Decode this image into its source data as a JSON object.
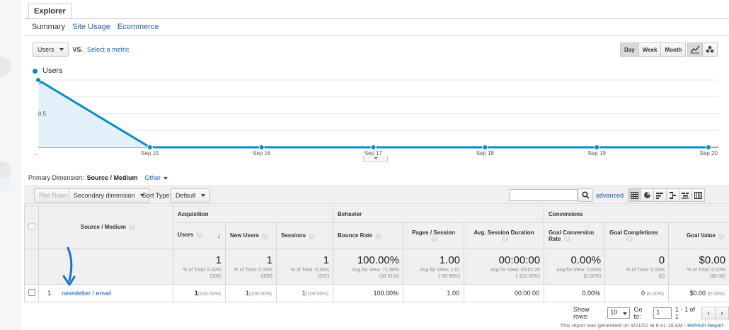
{
  "explorer_tab": "Explorer",
  "subtabs": [
    "Summary",
    "Site Usage",
    "Ecommerce"
  ],
  "metric_select": "Users",
  "vs_label": "VS.",
  "select_metric_link": "Select a metric",
  "period_buttons": [
    "Day",
    "Week",
    "Month"
  ],
  "period_active": "Day",
  "chart_type_icons": [
    "line-chart-icon",
    "motion-chart-icon"
  ],
  "chart_data": {
    "type": "area",
    "series": [
      {
        "name": "Users",
        "values": [
          1,
          0,
          0,
          0,
          0,
          0,
          0
        ]
      }
    ],
    "categories": [
      "...",
      "Sep 15",
      "Sep 16",
      "Sep 17",
      "Sep 18",
      "Sep 19",
      "Sep 20"
    ],
    "y_tick_labels": [
      "1",
      "0.5"
    ],
    "ylim": [
      0,
      1
    ],
    "grid": true,
    "legend_position": "top-left",
    "line_color": "#058dc7",
    "fill_color": "#e4f0fa"
  },
  "primary_dimension": {
    "label": "Primary Dimension:",
    "value": "Source / Medium",
    "other": "Other"
  },
  "toolbar": {
    "plot_rows": "Plot Rows",
    "secondary_dimension": "Secondary dimension",
    "sort_type_label": "Sort Type:",
    "sort_type_value": "Default",
    "search_value": "",
    "advanced": "advanced",
    "view_icons": [
      "data-table-icon",
      "pie-chart-icon",
      "performance-icon",
      "comparison-icon",
      "term-cloud-icon",
      "pivot-icon"
    ]
  },
  "table": {
    "groups": {
      "acquisition": "Acquisition",
      "behavior": "Behavior",
      "conversions": "Conversions"
    },
    "source_header": "Source / Medium",
    "columns": [
      "Users",
      "New Users",
      "Sessions",
      "Bounce Rate",
      "Pages / Session",
      "Avg. Session Duration",
      "Goal Conversion Rate",
      "Goal Completions",
      "Goal Value"
    ],
    "totals": [
      {
        "value": "1",
        "sub1": "% of Total: 0.32%",
        "sub2": "(308)"
      },
      {
        "value": "1",
        "sub1": "% of Total: 0.33%",
        "sub2": "(300)"
      },
      {
        "value": "1",
        "sub1": "% of Total: 0.30%",
        "sub2": "(332)"
      },
      {
        "value": "100.00%",
        "sub1": "Avg for View: 71.99%",
        "sub2": "(38.91%)"
      },
      {
        "value": "1.00",
        "sub1": "Avg for View: 1.67",
        "sub2": "(-39.96%)"
      },
      {
        "value": "00:00:00",
        "sub1": "Avg for View: 00:01:20",
        "sub2": "(-100.00%)"
      },
      {
        "value": "0.00%",
        "sub1": "Avg for View: 0.00%",
        "sub2": "(0.00%)"
      },
      {
        "value": "0",
        "sub1": "% of Total: 0.00%",
        "sub2": "(0)"
      },
      {
        "value": "$0.00",
        "sub1": "% of Total: 0.00%",
        "sub2": "($0.00)"
      }
    ],
    "rows": [
      {
        "index": "1.",
        "source": "newsletter / email",
        "users": "1",
        "users_pct": "(100.00%)",
        "new_users": "1",
        "new_users_pct": "(100.00%)",
        "sessions": "1",
        "sessions_pct": "(100.00%)",
        "bounce_rate": "100.00%",
        "pages_session": "1.00",
        "avg_duration": "00:00:00",
        "goal_conv_rate": "0.00%",
        "goal_completions": "0",
        "goal_completions_pct": "(0.00%)",
        "goal_value": "$0.00",
        "goal_value_pct": "(0.00%)"
      }
    ]
  },
  "pager": {
    "show_rows_label": "Show rows:",
    "show_rows_value": "10",
    "goto_label": "Go to:",
    "goto_value": "1",
    "range": "1 - 1 of 1",
    "prev": "‹",
    "next": "›"
  },
  "generated": {
    "text": "This report was generated on 9/21/22 at 8:41:18 AM - ",
    "refresh": "Refresh Report"
  },
  "accent_color": "#058dc7",
  "annotation_arrow_color": "#1a6fd0"
}
